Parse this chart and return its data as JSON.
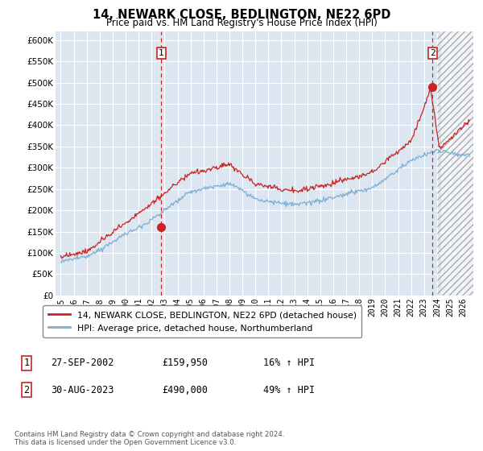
{
  "title": "14, NEWARK CLOSE, BEDLINGTON, NE22 6PD",
  "subtitle": "Price paid vs. HM Land Registry's House Price Index (HPI)",
  "ylabel_ticks": [
    "£0",
    "£50K",
    "£100K",
    "£150K",
    "£200K",
    "£250K",
    "£300K",
    "£350K",
    "£400K",
    "£450K",
    "£500K",
    "£550K",
    "£600K"
  ],
  "ytick_values": [
    0,
    50000,
    100000,
    150000,
    200000,
    250000,
    300000,
    350000,
    400000,
    450000,
    500000,
    550000,
    600000
  ],
  "ylim": [
    0,
    620000
  ],
  "xlim_start": 1994.6,
  "xlim_end": 2026.8,
  "xticks": [
    1995,
    1996,
    1997,
    1998,
    1999,
    2000,
    2001,
    2002,
    2003,
    2004,
    2005,
    2006,
    2007,
    2008,
    2009,
    2010,
    2011,
    2012,
    2013,
    2014,
    2015,
    2016,
    2017,
    2018,
    2019,
    2020,
    2021,
    2022,
    2023,
    2024,
    2025,
    2026
  ],
  "hpi_color": "#7bafd4",
  "price_color": "#cc2222",
  "bg_color": "#dce6f1",
  "grid_color": "#ffffff",
  "marker1_x": 2002.74,
  "marker1_y": 159950,
  "marker2_x": 2023.66,
  "marker2_y": 490000,
  "marker1_label": "1",
  "marker2_label": "2",
  "hatch_start": 2024.33,
  "legend_price": "14, NEWARK CLOSE, BEDLINGTON, NE22 6PD (detached house)",
  "legend_hpi": "HPI: Average price, detached house, Northumberland",
  "note1_label": "1",
  "note1_date": "27-SEP-2002",
  "note1_price": "£159,950",
  "note1_hpi": "16% ↑ HPI",
  "note2_label": "2",
  "note2_date": "30-AUG-2023",
  "note2_price": "£490,000",
  "note2_hpi": "49% ↑ HPI",
  "footer": "Contains HM Land Registry data © Crown copyright and database right 2024.\nThis data is licensed under the Open Government Licence v3.0."
}
